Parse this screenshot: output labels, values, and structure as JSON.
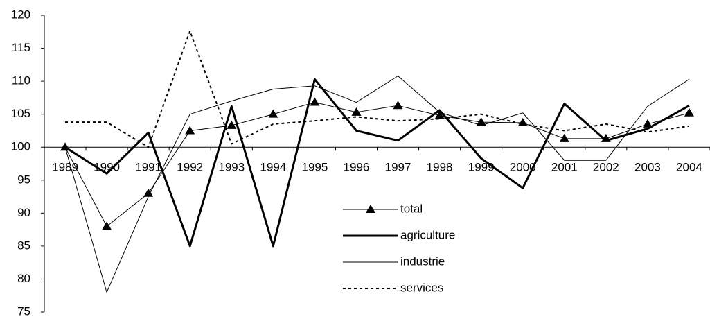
{
  "chart_data": {
    "type": "line",
    "categories": [
      "1989",
      "1990",
      "1991",
      "1992",
      "1993",
      "1994",
      "1995",
      "1996",
      "1997",
      "1998",
      "1999",
      "2000",
      "2001",
      "2002",
      "2003",
      "2004"
    ],
    "series": [
      {
        "name": "total",
        "color": "#000000",
        "line_width": 1,
        "dash": "none",
        "marker": "triangle",
        "values": [
          100,
          88,
          93,
          102.5,
          103.3,
          105,
          106.8,
          105.3,
          106.3,
          104.8,
          103.8,
          103.7,
          101.3,
          101.3,
          103.5,
          105.2
        ]
      },
      {
        "name": "agriculture",
        "color": "#000000",
        "line_width": 3,
        "dash": "none",
        "marker": "none",
        "values": [
          100,
          96,
          102.2,
          85,
          106.2,
          85,
          110.3,
          102.5,
          101,
          105.6,
          98.3,
          93.8,
          106.6,
          101,
          102.8,
          106.3
        ]
      },
      {
        "name": "industrie",
        "color": "#000000",
        "line_width": 1,
        "dash": "none",
        "marker": "none",
        "values": [
          100,
          78,
          92.5,
          105,
          107,
          108.8,
          109.3,
          106.8,
          110.8,
          105.3,
          103.3,
          105.2,
          98,
          98,
          106.2,
          110.3
        ]
      },
      {
        "name": "services",
        "color": "#000000",
        "line_width": 2,
        "dash": "dotted",
        "marker": "none",
        "values": [
          103.8,
          103.8,
          100,
          117.6,
          100.5,
          103.5,
          104,
          104.6,
          104,
          104.3,
          105,
          103.5,
          102.5,
          103.5,
          102.3,
          103.2
        ]
      }
    ],
    "ylim": [
      75,
      120
    ],
    "yticks": [
      75,
      80,
      85,
      90,
      95,
      100,
      105,
      110,
      115,
      120
    ],
    "x_axis_at": 100,
    "grid": false,
    "legend": "center"
  }
}
